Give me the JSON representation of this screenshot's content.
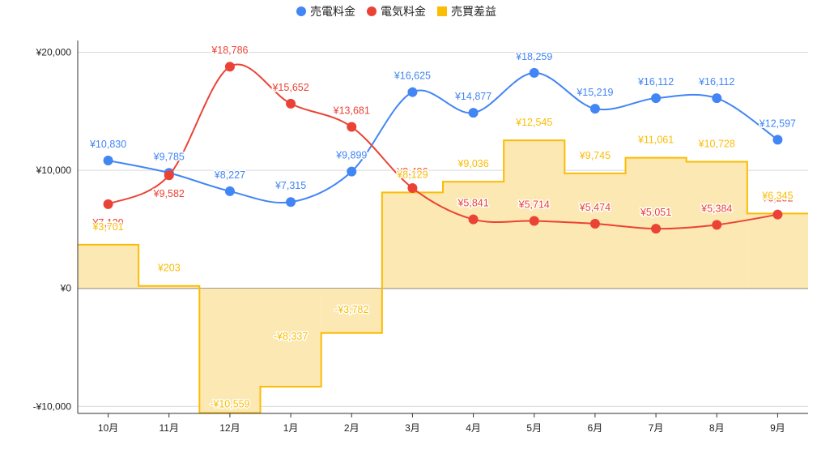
{
  "chart_data": {
    "type": "line",
    "categories": [
      "10月",
      "11月",
      "12月",
      "1月",
      "2月",
      "3月",
      "4月",
      "5月",
      "6月",
      "7月",
      "8月",
      "9月"
    ],
    "series": [
      {
        "name": "売電料金",
        "kind": "smooth-line",
        "color": "#4285f4",
        "values": [
          10830,
          9785,
          8227,
          7315,
          9899,
          16625,
          14877,
          18259,
          15219,
          16112,
          16112,
          12597
        ],
        "labels": [
          "¥10,830",
          "¥9,785",
          "¥8,227",
          "¥7,315",
          "¥9,899",
          "¥16,625",
          "¥14,877",
          "¥18,259",
          "¥15,219",
          "¥16,112",
          "¥16,112",
          "¥12,597"
        ]
      },
      {
        "name": "電気料金",
        "kind": "smooth-line",
        "color": "#ea4335",
        "values": [
          7129,
          9582,
          18786,
          15652,
          13681,
          8496,
          5841,
          5714,
          5474,
          5051,
          5384,
          6252
        ],
        "labels": [
          "¥7,129",
          "¥9,582",
          "¥18,786",
          "¥15,652",
          "¥13,681",
          "¥8,496",
          "¥5,841",
          "¥5,714",
          "¥5,474",
          "¥5,051",
          "¥5,384",
          "¥6,252"
        ]
      },
      {
        "name": "売買差益",
        "kind": "stepped-area",
        "color": "#fbbc04",
        "fill": "#fce8b2",
        "values": [
          3701,
          203,
          -10559,
          -8337,
          -3782,
          8129,
          9036,
          12545,
          9745,
          11061,
          10728,
          6345
        ],
        "labels": [
          "¥3,701",
          "¥203",
          "-¥10,559",
          "-¥8,337",
          "-¥3,782",
          "¥8,129",
          "¥9,036",
          "¥12,545",
          "¥9,745",
          "¥11,061",
          "¥10,728",
          "¥6,345"
        ]
      }
    ],
    "y_ticks": [
      -10000,
      0,
      10000,
      20000
    ],
    "y_tick_labels": [
      "-¥10,000",
      "¥0",
      "¥10,000",
      "¥20,000"
    ],
    "ylim": [
      -10600,
      21000
    ],
    "grid": true,
    "legend_position": "top-center"
  }
}
